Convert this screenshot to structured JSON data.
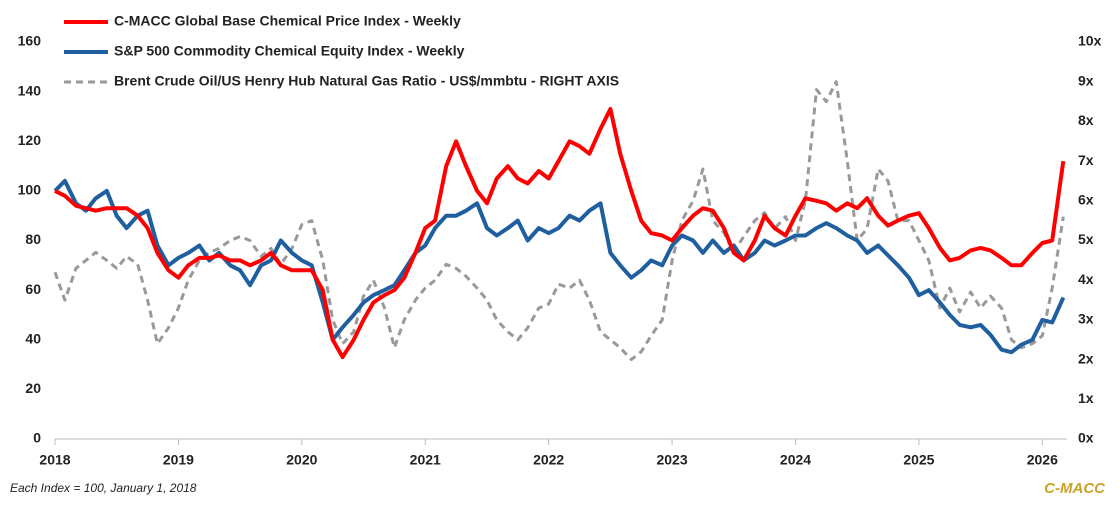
{
  "chart_data": {
    "type": "line",
    "note": "Each Index = 100, January 1, 2018",
    "brand": "C-MACC",
    "legend": "top-left",
    "x": [
      2018,
      2018.08,
      2018.17,
      2018.25,
      2018.33,
      2018.42,
      2018.5,
      2018.58,
      2018.67,
      2018.75,
      2018.83,
      2018.92,
      2019,
      2019.08,
      2019.17,
      2019.25,
      2019.33,
      2019.42,
      2019.5,
      2019.58,
      2019.67,
      2019.75,
      2019.83,
      2019.92,
      2020,
      2020.08,
      2020.17,
      2020.25,
      2020.33,
      2020.42,
      2020.5,
      2020.58,
      2020.67,
      2020.75,
      2020.83,
      2020.92,
      2021,
      2021.08,
      2021.17,
      2021.25,
      2021.33,
      2021.42,
      2021.5,
      2021.58,
      2021.67,
      2021.75,
      2021.83,
      2021.92,
      2022,
      2022.08,
      2022.17,
      2022.25,
      2022.33,
      2022.42,
      2022.5,
      2022.58,
      2022.67,
      2022.75,
      2022.83,
      2022.92,
      2023,
      2023.08,
      2023.17,
      2023.25,
      2023.33,
      2023.42,
      2023.5,
      2023.58,
      2023.67,
      2023.75,
      2023.83,
      2023.92,
      2024,
      2024.08,
      2024.17,
      2024.25,
      2024.33,
      2024.42,
      2024.5,
      2024.58,
      2024.67,
      2024.75,
      2024.83,
      2024.92,
      2025,
      2025.08,
      2025.17,
      2025.25,
      2025.33,
      2025.42,
      2025.5,
      2025.58,
      2025.67,
      2025.75,
      2025.83,
      2025.92,
      2026,
      2026.08,
      2026.17
    ],
    "series": [
      {
        "name": "C-MACC Global Base Chemical Price Index - Weekly",
        "color": "#ff0000",
        "dashed": false,
        "values": [
          100,
          98,
          94,
          93,
          92,
          93,
          93,
          93,
          90,
          85,
          75,
          68,
          65,
          70,
          73,
          73,
          74,
          72,
          72,
          70,
          72,
          75,
          70,
          68,
          68,
          68,
          60,
          40,
          33,
          40,
          48,
          55,
          58,
          60,
          65,
          75,
          85,
          88,
          110,
          120,
          110,
          100,
          95,
          105,
          110,
          105,
          103,
          108,
          105,
          112,
          120,
          118,
          115,
          125,
          133,
          115,
          100,
          88,
          83,
          82,
          80,
          85,
          90,
          93,
          92,
          85,
          75,
          72,
          80,
          90,
          85,
          82,
          90,
          97,
          96,
          95,
          92,
          95,
          93,
          97,
          90,
          86,
          88,
          90,
          91,
          85,
          77,
          72,
          73,
          76,
          77,
          76,
          73,
          70,
          70,
          75,
          79,
          80,
          112
        ]
      },
      {
        "name": "S&P 500 Commodity Chemical Equity Index - Weekly",
        "color": "#1f5fa0",
        "dashed": false,
        "values": [
          100,
          104,
          95,
          92,
          97,
          100,
          90,
          85,
          90,
          92,
          78,
          70,
          73,
          75,
          78,
          72,
          75,
          70,
          68,
          62,
          70,
          72,
          80,
          75,
          72,
          70,
          55,
          40,
          45,
          50,
          55,
          58,
          60,
          62,
          68,
          75,
          78,
          85,
          90,
          90,
          92,
          95,
          85,
          82,
          85,
          88,
          80,
          85,
          83,
          85,
          90,
          88,
          92,
          95,
          75,
          70,
          65,
          68,
          72,
          70,
          78,
          82,
          80,
          75,
          80,
          75,
          78,
          72,
          75,
          80,
          78,
          80,
          82,
          82,
          85,
          87,
          85,
          82,
          80,
          75,
          78,
          74,
          70,
          65,
          58,
          60,
          55,
          50,
          46,
          45,
          46,
          42,
          36,
          35,
          38,
          40,
          48,
          47,
          57
        ]
      },
      {
        "name": "Brent Crude Oil/US Henry Hub Natural Gas Ratio - US$/mmbtu - RIGHT AXIS",
        "color": "#999999",
        "dashed": true,
        "axis": "y2",
        "values": [
          4.2,
          3.5,
          4.3,
          4.5,
          4.7,
          4.5,
          4.3,
          4.6,
          4.4,
          3.5,
          2.4,
          2.8,
          3.3,
          4.0,
          4.5,
          4.7,
          4.8,
          5.0,
          5.1,
          5.0,
          4.6,
          4.8,
          4.4,
          4.8,
          5.4,
          5.5,
          4.5,
          3.0,
          2.4,
          2.7,
          3.6,
          4.0,
          3.3,
          2.3,
          3.0,
          3.5,
          3.8,
          4.0,
          4.4,
          4.3,
          4.1,
          3.8,
          3.5,
          3.0,
          2.7,
          2.5,
          2.8,
          3.3,
          3.4,
          3.9,
          3.8,
          4.0,
          3.5,
          2.7,
          2.5,
          2.3,
          2.0,
          2.2,
          2.6,
          3.0,
          4.5,
          5.5,
          6.0,
          6.8,
          5.5,
          5.2,
          4.7,
          5.1,
          5.5,
          5.7,
          5.3,
          5.6,
          5.0,
          6.0,
          8.8,
          8.5,
          9.0,
          7.0,
          5.0,
          5.3,
          6.8,
          6.5,
          5.5,
          5.5,
          5.0,
          4.5,
          3.3,
          3.8,
          3.2,
          3.7,
          3.3,
          3.6,
          3.3,
          2.5,
          2.3,
          2.4,
          2.6,
          3.8,
          5.6
        ]
      }
    ],
    "xlim": [
      2018,
      2026.2
    ],
    "xticks": [
      2018,
      2019,
      2020,
      2021,
      2022,
      2023,
      2024,
      2025,
      2026
    ],
    "ylim": [
      0,
      160
    ],
    "yticks": [
      0,
      20,
      40,
      60,
      80,
      100,
      120,
      140,
      160
    ],
    "y2lim": [
      0,
      10
    ],
    "y2ticks": [
      {
        "value": 0,
        "label": "0x"
      },
      {
        "value": 1,
        "label": "1x"
      },
      {
        "value": 2,
        "label": "2x"
      },
      {
        "value": 3,
        "label": "3x"
      },
      {
        "value": 4,
        "label": "4x"
      },
      {
        "value": 5,
        "label": "5x"
      },
      {
        "value": 6,
        "label": "6x"
      },
      {
        "value": 7,
        "label": "7x"
      },
      {
        "value": 8,
        "label": "8x"
      },
      {
        "value": 9,
        "label": "9x"
      },
      {
        "value": 10,
        "label": "10x"
      }
    ]
  }
}
